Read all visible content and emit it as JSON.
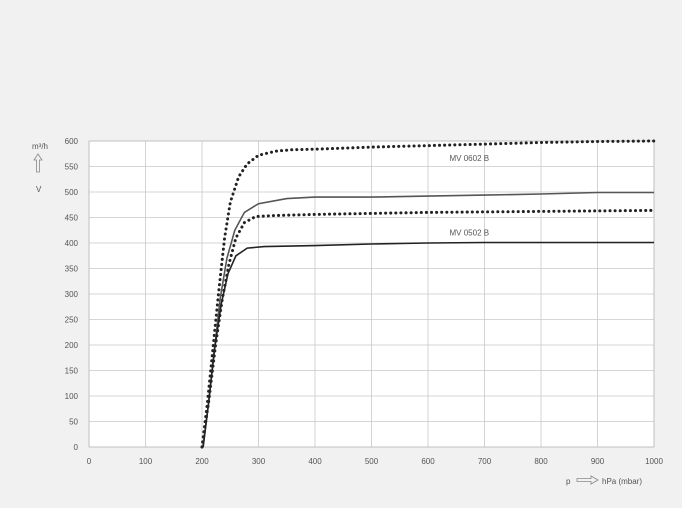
{
  "chart_data": {
    "type": "line",
    "y_unit_label": "m³/h",
    "y_symbol": "V",
    "x_symbol": "p",
    "x_unit_label": "hPa (mbar)",
    "xlim": [
      0,
      1000
    ],
    "ylim": [
      0,
      600
    ],
    "x_ticks": [
      0,
      100,
      200,
      300,
      400,
      500,
      600,
      700,
      800,
      900,
      1000
    ],
    "y_ticks": [
      0,
      50,
      100,
      150,
      200,
      250,
      300,
      350,
      400,
      450,
      500,
      550,
      600
    ],
    "grid": true,
    "series": [
      {
        "name": "MV 0602 B",
        "style": "dotted",
        "color": "#222222",
        "points": [
          [
            200,
            0
          ],
          [
            210,
            90
          ],
          [
            220,
            200
          ],
          [
            230,
            310
          ],
          [
            240,
            410
          ],
          [
            250,
            480
          ],
          [
            265,
            530
          ],
          [
            280,
            555
          ],
          [
            300,
            572
          ],
          [
            330,
            580
          ],
          [
            360,
            583
          ],
          [
            400,
            584
          ],
          [
            500,
            588
          ],
          [
            600,
            591
          ],
          [
            700,
            594
          ],
          [
            800,
            597
          ],
          [
            900,
            599
          ],
          [
            1000,
            600
          ]
        ]
      },
      {
        "name": "",
        "style": "dotted",
        "color": "#222222",
        "points": [
          [
            200,
            0
          ],
          [
            212,
            90
          ],
          [
            224,
            200
          ],
          [
            236,
            290
          ],
          [
            248,
            360
          ],
          [
            260,
            410
          ],
          [
            275,
            440
          ],
          [
            295,
            452
          ],
          [
            330,
            454
          ],
          [
            400,
            456
          ],
          [
            500,
            458
          ],
          [
            600,
            460
          ],
          [
            700,
            461
          ],
          [
            800,
            462
          ],
          [
            900,
            463
          ],
          [
            1000,
            464
          ]
        ]
      },
      {
        "name": "",
        "style": "solid",
        "color": "#555555",
        "points": [
          [
            202,
            0
          ],
          [
            212,
            90
          ],
          [
            222,
            190
          ],
          [
            232,
            290
          ],
          [
            244,
            370
          ],
          [
            258,
            425
          ],
          [
            275,
            460
          ],
          [
            300,
            477
          ],
          [
            350,
            487
          ],
          [
            400,
            490
          ],
          [
            500,
            490
          ],
          [
            600,
            492
          ],
          [
            700,
            494
          ],
          [
            800,
            496
          ],
          [
            900,
            499
          ],
          [
            1000,
            499
          ]
        ]
      },
      {
        "name": "MV 0502 B",
        "style": "solid",
        "color": "#222222",
        "points": [
          [
            202,
            0
          ],
          [
            212,
            90
          ],
          [
            222,
            190
          ],
          [
            234,
            280
          ],
          [
            246,
            340
          ],
          [
            260,
            375
          ],
          [
            280,
            390
          ],
          [
            310,
            393
          ],
          [
            400,
            395
          ],
          [
            500,
            398
          ],
          [
            600,
            400
          ],
          [
            700,
            401
          ],
          [
            800,
            401
          ],
          [
            900,
            401
          ],
          [
            1000,
            401
          ]
        ]
      }
    ]
  }
}
